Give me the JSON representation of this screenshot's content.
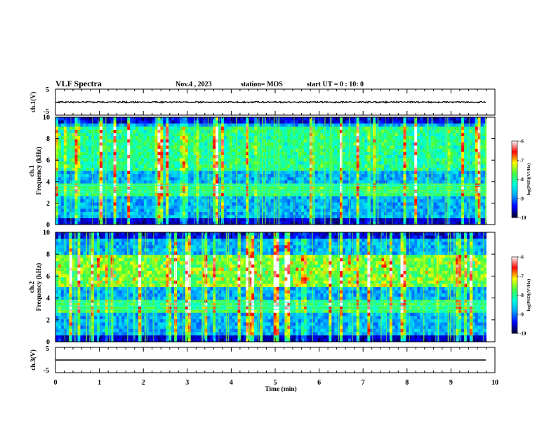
{
  "header": {
    "title": "VLF Spectra",
    "date": "Nov.4 , 2023",
    "station": "station= MOS",
    "start": "start UT = 0 : 10: 0"
  },
  "chart_data": [
    {
      "type": "line",
      "name": "ch1-waveform",
      "ylabel": "ch.1(V)",
      "ylim": [
        -5,
        5
      ],
      "yticks": [
        "5",
        "-5"
      ],
      "xlim": [
        0,
        10
      ]
    },
    {
      "type": "heatmap",
      "name": "ch1-spectrogram",
      "ylabel": "ch.1\nFrequency (kHz)",
      "ylabel_top": "ch.1",
      "ylabel_main": "Frequency (kHz)",
      "ylim": [
        0,
        10
      ],
      "yticks": [
        "0",
        "2",
        "4",
        "6",
        "8",
        "10"
      ],
      "xlim": [
        0,
        10
      ],
      "data_end_min": 9.8,
      "colorbar": {
        "ticks": [
          "-6",
          "-7",
          "-8",
          "-9",
          "-10"
        ],
        "label": "log(PSD)(V²/Hz)",
        "range": [
          -10,
          -6
        ]
      }
    },
    {
      "type": "heatmap",
      "name": "ch2-spectrogram",
      "ylabel_top": "ch.2",
      "ylabel_main": "Frequency (kHz)",
      "ylim": [
        0,
        10
      ],
      "yticks": [
        "0",
        "2",
        "4",
        "6",
        "8",
        "10"
      ],
      "xlim": [
        0,
        10
      ],
      "data_end_min": 9.8,
      "colorbar": {
        "ticks": [
          "-6",
          "-7",
          "-8",
          "-9",
          "-10"
        ],
        "label": "log(PSD)(V²/Hz)",
        "range": [
          -10,
          -6
        ]
      }
    },
    {
      "type": "line",
      "name": "ch3-waveform",
      "ylabel": "ch.3(V)",
      "ylim": [
        -5,
        5
      ],
      "yticks": [
        "5",
        "-5"
      ],
      "xlim": [
        0,
        10
      ]
    }
  ],
  "x_axis": {
    "label": "Time (min)",
    "ticks": [
      "0",
      "1",
      "2",
      "3",
      "4",
      "5",
      "6",
      "7",
      "8",
      "9",
      "10"
    ]
  },
  "colors": {
    "colormap": [
      "#00002a",
      "#0000ff",
      "#00a0ff",
      "#00ffe0",
      "#40ff40",
      "#ffff00",
      "#ff0000",
      "#ffffff"
    ]
  }
}
